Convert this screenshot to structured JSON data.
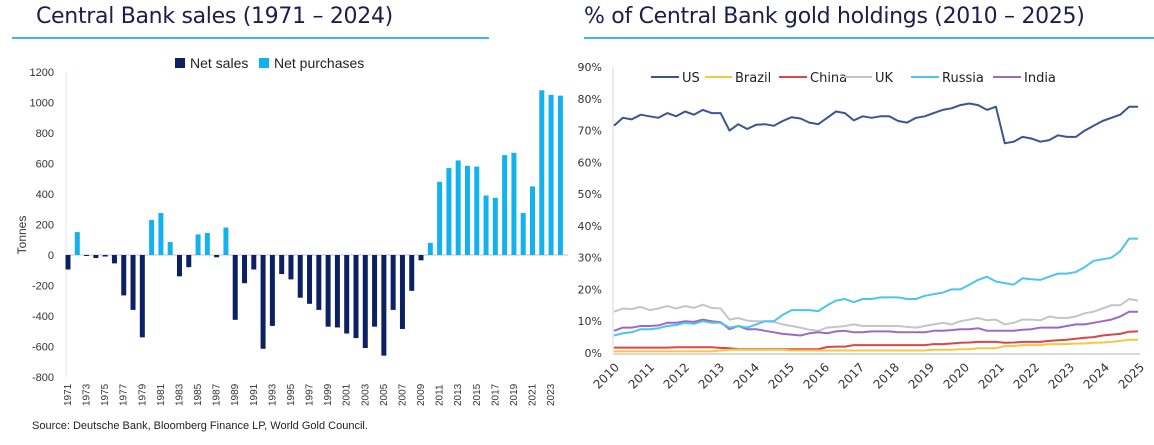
{
  "left": {
    "title": "Central Bank sales (1971 – 2024)",
    "source": "Source: Deutsche Bank, Bloomberg Finance LP, World Gold Council."
  },
  "right": {
    "title": "% of Central Bank gold holdings (2010 – 2025)"
  },
  "chart_data": [
    {
      "type": "bar",
      "title": "Central Bank sales (1971 – 2024)",
      "xlabel": "",
      "ylabel": "Tonnes",
      "ylim": [
        -800,
        1200
      ],
      "yticks": [
        -800,
        -600,
        -400,
        -200,
        0,
        200,
        400,
        600,
        800,
        1000,
        1200
      ],
      "xtick_labels": [
        "1971",
        "1973",
        "1975",
        "1977",
        "1979",
        "1981",
        "1983",
        "1985",
        "1987",
        "1989",
        "1991",
        "1993",
        "1995",
        "1997",
        "1999",
        "2001",
        "2003",
        "2005",
        "2007",
        "2009",
        "2011",
        "2013",
        "2015",
        "2017",
        "2019",
        "2021",
        "2023"
      ],
      "legend": "top-center",
      "colors": {
        "Net sales": "#0c2163",
        "Net purchases": "#12b2ee"
      },
      "series": [
        {
          "name": "Net sales",
          "rule": "value < 0"
        },
        {
          "name": "Net purchases",
          "rule": "value >= 0"
        }
      ],
      "categories": [
        1971,
        1972,
        1973,
        1974,
        1975,
        1976,
        1977,
        1978,
        1979,
        1980,
        1981,
        1982,
        1983,
        1984,
        1985,
        1986,
        1987,
        1988,
        1989,
        1990,
        1991,
        1992,
        1993,
        1994,
        1995,
        1996,
        1997,
        1998,
        1999,
        2000,
        2001,
        2002,
        2003,
        2004,
        2005,
        2006,
        2007,
        2008,
        2009,
        2010,
        2011,
        2012,
        2013,
        2014,
        2015,
        2016,
        2017,
        2018,
        2019,
        2020,
        2021,
        2022,
        2023,
        2024
      ],
      "values": [
        -95,
        150,
        -5,
        -20,
        -10,
        -55,
        -265,
        -360,
        -540,
        230,
        275,
        85,
        -140,
        -80,
        135,
        145,
        -15,
        180,
        -425,
        -185,
        -95,
        -615,
        -465,
        -125,
        -160,
        -280,
        -320,
        -360,
        -470,
        -475,
        -515,
        -545,
        -610,
        -470,
        -660,
        -360,
        -485,
        -235,
        -35,
        80,
        480,
        570,
        620,
        585,
        580,
        390,
        375,
        655,
        670,
        275,
        450,
        1080,
        1050,
        1045
      ]
    },
    {
      "type": "line",
      "title": "% of Central Bank gold holdings (2010 – 2025)",
      "xlabel": "",
      "ylabel": "",
      "ylim": [
        0,
        90
      ],
      "yticks": [
        "0%",
        "10%",
        "20%",
        "30%",
        "40%",
        "50%",
        "60%",
        "70%",
        "80%",
        "90%"
      ],
      "xtick_labels": [
        "2010",
        "2011",
        "2012",
        "2013",
        "2014",
        "2015",
        "2016",
        "2017",
        "2018",
        "2019",
        "2020",
        "2021",
        "2022",
        "2023",
        "2024",
        "2025"
      ],
      "legend": "top",
      "x_start": 2010,
      "x_step": 0.25,
      "series": [
        {
          "name": "US",
          "color": "#3a5591",
          "values": [
            71.5,
            74,
            73.5,
            75,
            74.5,
            74,
            75.5,
            74.5,
            76,
            75,
            76.5,
            75.5,
            75.5,
            70,
            72,
            70.5,
            71.8,
            72,
            71.5,
            73,
            74.2,
            73.8,
            72.5,
            72,
            74,
            76,
            75.5,
            73.2,
            74.5,
            74,
            74.5,
            74.5,
            73,
            72.5,
            74,
            74.5,
            75.5,
            76.5,
            77,
            78,
            78.5,
            78,
            76.5,
            77.5,
            66,
            66.5,
            68,
            67.5,
            66.5,
            67,
            68.5,
            68,
            68,
            70,
            71.5,
            73,
            74,
            75,
            77.5,
            77.5
          ]
        },
        {
          "name": "Brazil",
          "color": "#f6c744",
          "values": [
            0.5,
            0.5,
            0.5,
            0.5,
            0.5,
            0.5,
            0.5,
            0.5,
            0.5,
            0.5,
            0.5,
            0.5,
            0.8,
            1,
            1,
            1,
            1,
            1,
            1,
            1,
            0.8,
            0.8,
            0.8,
            0.8,
            0.8,
            0.8,
            0.8,
            0.8,
            0.8,
            0.8,
            0.8,
            0.8,
            0.8,
            0.8,
            0.8,
            0.8,
            1,
            1,
            1,
            1.2,
            1.2,
            1.5,
            1.5,
            1.5,
            2.2,
            2.2,
            2.5,
            2.5,
            2.5,
            2.8,
            2.8,
            2.8,
            3,
            3,
            3.2,
            3.3,
            3.5,
            3.8,
            4.2,
            4.2
          ]
        },
        {
          "name": "China",
          "color": "#d9474a",
          "values": [
            1.7,
            1.7,
            1.7,
            1.7,
            1.7,
            1.7,
            1.7,
            1.8,
            1.8,
            1.8,
            1.8,
            1.8,
            1.6,
            1.5,
            1.2,
            1.2,
            1.2,
            1.2,
            1.2,
            1.2,
            1.2,
            1.2,
            1.2,
            1.2,
            1.9,
            2,
            2,
            2.5,
            2.5,
            2.5,
            2.5,
            2.5,
            2.5,
            2.5,
            2.5,
            2.5,
            2.8,
            2.8,
            3,
            3.2,
            3.3,
            3.5,
            3.5,
            3.5,
            3.2,
            3.3,
            3.5,
            3.5,
            3.5,
            3.8,
            4,
            4.2,
            4.5,
            4.8,
            5,
            5.5,
            5.8,
            6,
            6.7,
            6.8
          ]
        },
        {
          "name": "UK",
          "color": "#c4c4cc",
          "values": [
            13,
            14,
            13.8,
            14.5,
            13.5,
            14,
            14.8,
            14,
            14.8,
            14.2,
            15.2,
            14.2,
            14,
            10.5,
            11,
            10.2,
            10,
            10,
            9.8,
            9,
            8.5,
            8,
            7.3,
            7,
            8,
            8.2,
            8.5,
            9,
            8.5,
            8.5,
            8.5,
            8.5,
            8.5,
            8.2,
            8,
            8.5,
            9,
            9.5,
            9,
            10,
            10.5,
            11,
            10.3,
            10.5,
            9,
            9.5,
            10.5,
            10.5,
            10.3,
            11.5,
            11,
            11,
            11.5,
            12.5,
            13,
            14,
            15,
            15,
            17,
            16.5
          ]
        },
        {
          "name": "Russia",
          "color": "#4ec3f0",
          "values": [
            5.5,
            6.2,
            6.5,
            7.5,
            7.5,
            7.8,
            8.5,
            8.8,
            9.5,
            9.2,
            10,
            9.5,
            9.5,
            8,
            8.5,
            8,
            9,
            10,
            10,
            12,
            13.5,
            13.5,
            13.5,
            13.2,
            15,
            16.5,
            17,
            16,
            17,
            17,
            17.5,
            17.5,
            17.5,
            17,
            17,
            18,
            18.5,
            19,
            20,
            20,
            21.5,
            23,
            24,
            22.5,
            22,
            21.5,
            23.5,
            23.2,
            23,
            24,
            25,
            25,
            25.5,
            27,
            29,
            29.5,
            30,
            32,
            36,
            36
          ]
        },
        {
          "name": "India",
          "color": "#9b6ac9",
          "values": [
            7,
            8,
            8,
            8.5,
            8.5,
            8.7,
            9.5,
            9.5,
            10,
            9.8,
            10.5,
            10,
            9.7,
            7.5,
            8.5,
            7.5,
            7.5,
            7,
            6.5,
            6,
            5.8,
            5.5,
            6.2,
            6.5,
            6.2,
            6.8,
            7,
            6.5,
            6.5,
            6.8,
            6.8,
            6.8,
            6.5,
            6.5,
            6.5,
            6.5,
            7,
            7,
            7.2,
            7.5,
            7.5,
            7.8,
            7,
            7,
            7,
            7,
            7.3,
            7.5,
            8,
            8,
            8,
            8.5,
            9,
            9,
            9.5,
            10,
            10.5,
            11.5,
            13,
            13
          ]
        }
      ]
    }
  ]
}
